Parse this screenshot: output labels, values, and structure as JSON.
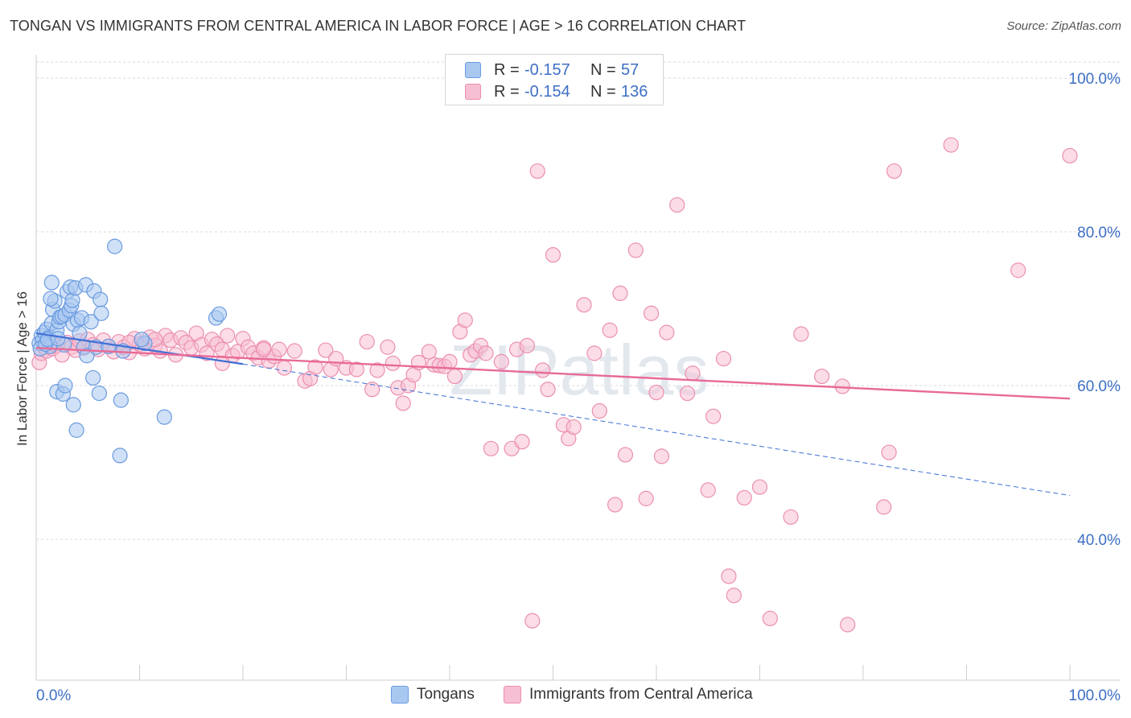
{
  "title": "TONGAN VS IMMIGRANTS FROM CENTRAL AMERICA IN LABOR FORCE | AGE > 16 CORRELATION CHART",
  "source": "Source: ZipAtlas.com",
  "watermark": "ZIPatlas",
  "legend": {
    "rows": [
      {
        "r_label": "R =",
        "r_value": "-0.157",
        "n_label": "N =",
        "n_value": "57",
        "color": "#a9c8f0",
        "border": "#6a9be0"
      },
      {
        "r_label": "R =",
        "r_value": "-0.154",
        "n_label": "N =",
        "n_value": "136",
        "color": "#f7bfd3",
        "border": "#ec8fb0"
      }
    ]
  },
  "bottom_legend": [
    {
      "label": "Tongans",
      "color": "#a9c8f0",
      "border": "#6a9be0"
    },
    {
      "label": "Immigrants from Central America",
      "color": "#f7bfd3",
      "border": "#ec8fb0"
    }
  ],
  "chart_data": {
    "type": "scatter",
    "title": "TONGAN VS IMMIGRANTS FROM CENTRAL AMERICA IN LABOR FORCE | AGE > 16 CORRELATION CHART",
    "xlabel": "",
    "ylabel": "In Labor Force | Age > 16",
    "xlim": [
      0,
      100
    ],
    "ylim": [
      20,
      103
    ],
    "x_tick_labels": [
      "0.0%",
      "100.0%"
    ],
    "y_ticks": [
      40,
      60,
      80,
      100
    ],
    "y_tick_labels": [
      "40.0%",
      "60.0%",
      "80.0%",
      "100.0%"
    ],
    "grid": true,
    "legend_position": "top-center",
    "series": [
      {
        "name": "Tongans",
        "color": "#6a9be0",
        "fill": "#a9c8f0",
        "trend": {
          "x0": 0,
          "y0": 66.8,
          "x1": 20,
          "y1": 62.8,
          "dashed_to_x": 100,
          "dashed_to_y": 45.7
        },
        "points": [
          [
            0.3,
            65.5
          ],
          [
            0.5,
            66.5
          ],
          [
            0.6,
            65.8
          ],
          [
            0.8,
            66.9
          ],
          [
            1.0,
            67.3
          ],
          [
            1.2,
            66.2
          ],
          [
            1.3,
            65.1
          ],
          [
            1.5,
            68.1
          ],
          [
            1.6,
            69.9
          ],
          [
            1.8,
            71.0
          ],
          [
            1.4,
            71.3
          ],
          [
            1.5,
            73.4
          ],
          [
            2.0,
            67.2
          ],
          [
            2.2,
            68.3
          ],
          [
            2.3,
            68.9
          ],
          [
            2.5,
            69.0
          ],
          [
            2.7,
            65.3
          ],
          [
            2.8,
            69.2
          ],
          [
            3.0,
            72.2
          ],
          [
            3.2,
            69.8
          ],
          [
            3.3,
            72.8
          ],
          [
            3.4,
            70.4
          ],
          [
            3.5,
            71.1
          ],
          [
            3.6,
            68.0
          ],
          [
            3.8,
            72.7
          ],
          [
            4.0,
            68.5
          ],
          [
            4.2,
            66.8
          ],
          [
            4.4,
            68.8
          ],
          [
            4.6,
            65.0
          ],
          [
            4.8,
            73.1
          ],
          [
            4.9,
            63.9
          ],
          [
            5.3,
            68.3
          ],
          [
            5.6,
            72.3
          ],
          [
            5.8,
            65.0
          ],
          [
            6.2,
            71.2
          ],
          [
            6.3,
            69.4
          ],
          [
            7.0,
            65.1
          ],
          [
            7.6,
            78.1
          ],
          [
            8.2,
            58.1
          ],
          [
            8.4,
            64.5
          ],
          [
            2.0,
            59.2
          ],
          [
            2.6,
            58.9
          ],
          [
            2.8,
            60.0
          ],
          [
            3.6,
            57.5
          ],
          [
            3.9,
            54.2
          ],
          [
            5.5,
            61.0
          ],
          [
            6.1,
            59.0
          ],
          [
            8.1,
            50.9
          ],
          [
            12.4,
            55.9
          ],
          [
            17.4,
            68.8
          ],
          [
            17.7,
            69.3
          ],
          [
            10.5,
            65.5
          ],
          [
            10.2,
            66.0
          ],
          [
            0.4,
            64.8
          ],
          [
            0.9,
            65.4
          ],
          [
            1.1,
            66.0
          ],
          [
            2.1,
            66.1
          ]
        ]
      },
      {
        "name": "Immigrants from Central America",
        "color": "#ec8fb0",
        "fill": "#f7bfd3",
        "trend": {
          "x0": 0,
          "y0": 64.9,
          "x1": 100,
          "y1": 58.3
        },
        "points": [
          [
            0.3,
            63.0
          ],
          [
            0.5,
            64.2
          ],
          [
            0.8,
            65.0
          ],
          [
            1.0,
            64.5
          ],
          [
            1.3,
            65.5
          ],
          [
            1.6,
            64.8
          ],
          [
            2.0,
            65.2
          ],
          [
            2.5,
            64.0
          ],
          [
            3.0,
            65.6
          ],
          [
            3.4,
            65.0
          ],
          [
            3.8,
            64.6
          ],
          [
            4.2,
            65.8
          ],
          [
            4.6,
            64.9
          ],
          [
            5.0,
            66.0
          ],
          [
            5.5,
            65.3
          ],
          [
            6.0,
            64.7
          ],
          [
            6.5,
            65.9
          ],
          [
            7.0,
            65.1
          ],
          [
            7.5,
            64.4
          ],
          [
            8.0,
            65.7
          ],
          [
            8.5,
            65.0
          ],
          [
            9.0,
            64.3
          ],
          [
            9.5,
            66.1
          ],
          [
            10.0,
            65.4
          ],
          [
            10.5,
            64.8
          ],
          [
            11.0,
            66.3
          ],
          [
            11.5,
            65.2
          ],
          [
            12.0,
            64.5
          ],
          [
            12.5,
            66.5
          ],
          [
            13.0,
            65.9
          ],
          [
            13.5,
            64.0
          ],
          [
            14.0,
            66.2
          ],
          [
            14.5,
            65.6
          ],
          [
            15.0,
            64.9
          ],
          [
            15.5,
            66.8
          ],
          [
            16.0,
            65.3
          ],
          [
            16.5,
            64.2
          ],
          [
            17.0,
            66.0
          ],
          [
            17.5,
            65.4
          ],
          [
            18.0,
            64.7
          ],
          [
            18.5,
            66.5
          ],
          [
            19.0,
            63.9
          ],
          [
            19.5,
            64.4
          ],
          [
            20.0,
            66.1
          ],
          [
            20.5,
            65.0
          ],
          [
            21.0,
            64.2
          ],
          [
            21.5,
            63.6
          ],
          [
            22.0,
            64.9
          ],
          [
            22.5,
            63.2
          ],
          [
            23.0,
            63.8
          ],
          [
            23.5,
            64.7
          ],
          [
            24.0,
            62.3
          ],
          [
            25.0,
            64.5
          ],
          [
            26.0,
            60.6
          ],
          [
            26.5,
            60.9
          ],
          [
            27.0,
            62.4
          ],
          [
            28.0,
            64.6
          ],
          [
            28.5,
            62.1
          ],
          [
            29.0,
            63.5
          ],
          [
            30.0,
            62.3
          ],
          [
            31.0,
            62.1
          ],
          [
            32.0,
            65.7
          ],
          [
            32.5,
            59.5
          ],
          [
            33.0,
            62.0
          ],
          [
            34.0,
            65.0
          ],
          [
            34.5,
            62.9
          ],
          [
            35.0,
            59.7
          ],
          [
            35.5,
            57.7
          ],
          [
            36.0,
            60.0
          ],
          [
            36.5,
            61.4
          ],
          [
            37.0,
            63.0
          ],
          [
            38.0,
            64.4
          ],
          [
            38.5,
            62.7
          ],
          [
            39.0,
            62.6
          ],
          [
            39.5,
            62.5
          ],
          [
            40.0,
            63.1
          ],
          [
            40.5,
            61.2
          ],
          [
            41.0,
            67.0
          ],
          [
            41.5,
            68.5
          ],
          [
            42.0,
            64.0
          ],
          [
            42.5,
            64.5
          ],
          [
            43.0,
            65.2
          ],
          [
            43.5,
            64.2
          ],
          [
            44.0,
            51.8
          ],
          [
            45.0,
            63.1
          ],
          [
            46.0,
            51.8
          ],
          [
            46.5,
            64.7
          ],
          [
            47.0,
            52.7
          ],
          [
            47.5,
            65.2
          ],
          [
            48.0,
            29.4
          ],
          [
            48.5,
            87.9
          ],
          [
            49.0,
            62.0
          ],
          [
            49.5,
            59.5
          ],
          [
            50.0,
            77.0
          ],
          [
            51.0,
            54.9
          ],
          [
            51.5,
            53.1
          ],
          [
            52.0,
            54.6
          ],
          [
            53.0,
            70.5
          ],
          [
            54.0,
            64.2
          ],
          [
            54.5,
            56.7
          ],
          [
            55.5,
            67.2
          ],
          [
            56.0,
            44.5
          ],
          [
            56.5,
            72.0
          ],
          [
            57.0,
            51.0
          ],
          [
            58.0,
            77.6
          ],
          [
            59.0,
            45.3
          ],
          [
            59.5,
            69.4
          ],
          [
            60.0,
            59.1
          ],
          [
            60.5,
            50.8
          ],
          [
            61.0,
            66.9
          ],
          [
            62.0,
            83.5
          ],
          [
            63.0,
            59.0
          ],
          [
            63.5,
            61.6
          ],
          [
            65.0,
            46.4
          ],
          [
            65.5,
            56.0
          ],
          [
            66.5,
            63.5
          ],
          [
            67.0,
            35.2
          ],
          [
            67.5,
            32.7
          ],
          [
            68.5,
            45.4
          ],
          [
            70.0,
            46.8
          ],
          [
            71.0,
            29.7
          ],
          [
            73.0,
            42.9
          ],
          [
            74.0,
            66.7
          ],
          [
            76.0,
            61.2
          ],
          [
            78.0,
            59.9
          ],
          [
            78.5,
            28.9
          ],
          [
            82.0,
            44.2
          ],
          [
            82.5,
            51.3
          ],
          [
            83.0,
            87.9
          ],
          [
            88.5,
            91.3
          ],
          [
            95.0,
            75.0
          ],
          [
            100.0,
            89.9
          ],
          [
            18.0,
            62.9
          ],
          [
            22.0,
            64.7
          ],
          [
            11.5,
            66.0
          ],
          [
            9.0,
            65.6
          ]
        ]
      }
    ]
  }
}
